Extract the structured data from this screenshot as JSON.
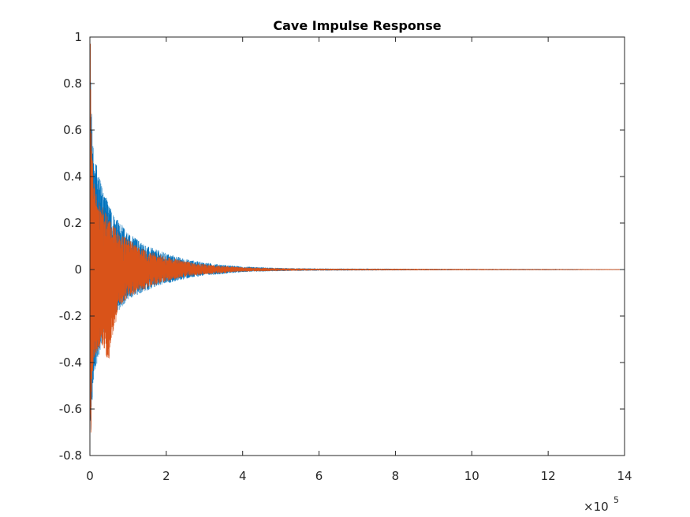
{
  "chart_data": {
    "type": "line",
    "title": "Cave Impulse Response",
    "xlabel": "",
    "ylabel": "",
    "xlim": [
      0,
      1400000
    ],
    "ylim": [
      -0.8,
      1
    ],
    "x_exponent_label": "×10",
    "x_exponent_power": "5",
    "xticks": [
      0,
      200000,
      400000,
      600000,
      800000,
      1000000,
      1200000,
      1400000
    ],
    "xtick_labels": [
      "0",
      "2",
      "4",
      "6",
      "8",
      "10",
      "12",
      "14"
    ],
    "yticks": [
      -0.8,
      -0.6,
      -0.4,
      -0.2,
      0,
      0.2,
      0.4,
      0.6,
      0.8,
      1
    ],
    "ytick_labels": [
      "-0.8",
      "-0.6",
      "-0.4",
      "-0.2",
      "0",
      "0.2",
      "0.4",
      "0.6",
      "0.8",
      "1"
    ],
    "grid": false,
    "legend": "none",
    "series": [
      {
        "color": "#0072BD",
        "envelope": {
          "x": [
            0,
            5000,
            10000,
            20000,
            30000,
            50000,
            75000,
            100000,
            150000,
            200000,
            250000,
            300000,
            350000,
            400000,
            500000,
            600000,
            800000,
            1000000,
            1200000,
            1400000
          ],
          "upper": [
            0.93,
            0.66,
            0.48,
            0.44,
            0.37,
            0.28,
            0.21,
            0.16,
            0.1,
            0.07,
            0.045,
            0.03,
            0.02,
            0.012,
            0.006,
            0.004,
            0.003,
            0.002,
            0.002,
            0.001
          ],
          "lower": [
            -0.69,
            -0.6,
            -0.45,
            -0.4,
            -0.33,
            -0.24,
            -0.18,
            -0.13,
            -0.09,
            -0.06,
            -0.04,
            -0.025,
            -0.018,
            -0.01,
            -0.006,
            -0.004,
            -0.003,
            -0.002,
            -0.002,
            -0.001
          ]
        }
      },
      {
        "color": "#D95319",
        "envelope": {
          "x": [
            0,
            5000,
            10000,
            20000,
            30000,
            50000,
            75000,
            100000,
            150000,
            200000,
            250000,
            300000,
            350000,
            400000,
            500000,
            600000,
            800000,
            1000000,
            1200000,
            1400000
          ],
          "upper": [
            0.97,
            0.55,
            0.38,
            0.3,
            0.28,
            0.22,
            0.16,
            0.13,
            0.08,
            0.055,
            0.035,
            0.022,
            0.015,
            0.009,
            0.005,
            0.003,
            0.0025,
            0.002,
            0.0015,
            0.001
          ],
          "lower": [
            -0.7,
            -0.5,
            -0.38,
            -0.35,
            -0.32,
            -0.4,
            -0.16,
            -0.12,
            -0.08,
            -0.05,
            -0.032,
            -0.02,
            -0.014,
            -0.008,
            -0.005,
            -0.003,
            -0.0025,
            -0.002,
            -0.0015,
            -0.001
          ]
        }
      }
    ]
  }
}
